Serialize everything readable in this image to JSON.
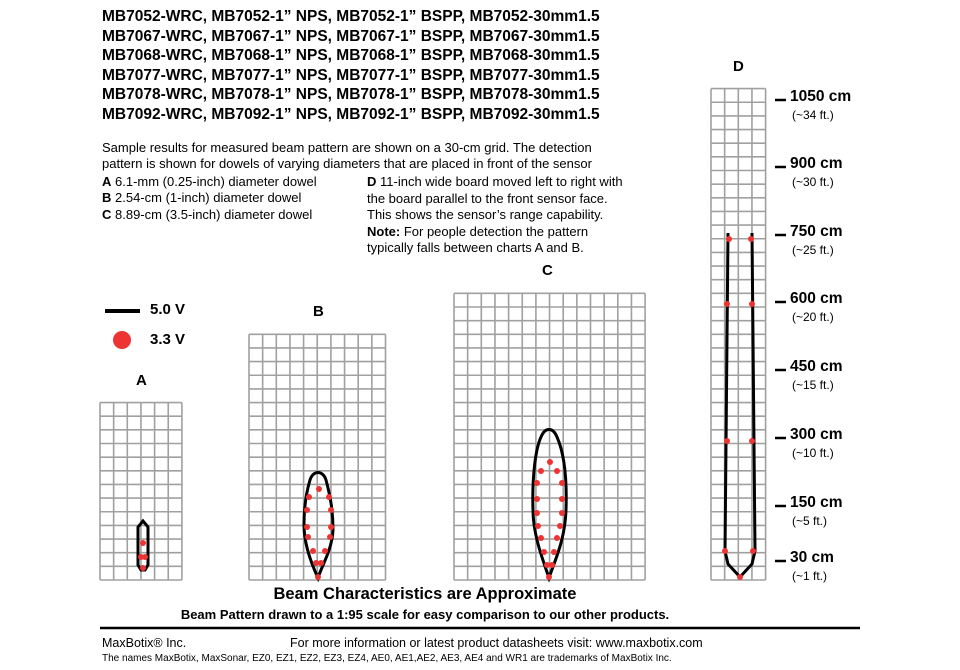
{
  "header": {
    "models": [
      "MB7052-WRC, MB7052-1” NPS, MB7052-1” BSPP, MB7052-30mm1.5",
      "MB7067-WRC, MB7067-1” NPS, MB7067-1” BSPP, MB7067-30mm1.5",
      "MB7068-WRC, MB7068-1” NPS, MB7068-1” BSPP, MB7068-30mm1.5",
      "MB7077-WRC, MB7077-1” NPS, MB7077-1” BSPP, MB7077-30mm1.5",
      "MB7078-WRC, MB7078-1” NPS, MB7078-1” BSPP, MB7078-30mm1.5",
      "MB7092-WRC, MB7092-1” NPS, MB7092-1” BSPP, MB7092-30mm1.5"
    ]
  },
  "description": {
    "line1": "Sample results for measured beam pattern are shown on a 30-cm grid. The detection",
    "line2": "pattern is shown for dowels of varying diameters that are placed in front of the sensor",
    "items": [
      {
        "key": "A",
        "text": " 6.1-mm (0.25-inch) diameter dowel"
      },
      {
        "key": "B",
        "text": " 2.54-cm (1-inch) diameter dowel"
      },
      {
        "key": "C",
        "text": " 8.89-cm (3.5-inch) diameter dowel"
      }
    ],
    "d_key": "D",
    "d_lines": [
      " 11-inch wide board moved left to right with",
      "the board parallel to the front sensor face.",
      "This shows the sensor’s range capability."
    ],
    "note_key": "Note:",
    "note_lines": [
      " For people detection the pattern",
      "typically falls between charts A and B."
    ]
  },
  "legend": {
    "line_label": "5.0 V",
    "dot_label": "3.3 V",
    "line_color": "#000000",
    "dot_color": "#ee3333"
  },
  "charts": {
    "A": {
      "label": "A",
      "cols": 6,
      "rows": 13
    },
    "B": {
      "label": "B",
      "cols": 10,
      "rows": 18
    },
    "C": {
      "label": "C",
      "cols": 14,
      "rows": 21
    },
    "D": {
      "label": "D",
      "cols": 4,
      "rows": 36
    }
  },
  "scale": [
    {
      "cm": "1050 cm",
      "ft": "(~34 ft.)"
    },
    {
      "cm": "900 cm",
      "ft": "(~30 ft.)"
    },
    {
      "cm": "750 cm",
      "ft": "(~25 ft.)"
    },
    {
      "cm": "600 cm",
      "ft": "(~20 ft.)"
    },
    {
      "cm": "450 cm",
      "ft": "(~15 ft.)"
    },
    {
      "cm": "300 cm",
      "ft": "(~10 ft.)"
    },
    {
      "cm": "150 cm",
      "ft": "(~5 ft.)"
    },
    {
      "cm": "30 cm",
      "ft": "(~1 ft.)"
    }
  ],
  "footer": {
    "title": "Beam Characteristics are Approximate",
    "subtitle": "Beam Pattern drawn to a 1:95 scale for easy comparison to our other products.",
    "company": "MaxBotix® Inc.",
    "info": "For more information or latest product datasheets visit:  www.maxbotix.com",
    "trademark": "The names MaxBotix, MaxSonar, EZ0, EZ1, EZ2, EZ3, EZ4, AE0, AE1,AE2, AE3, AE4 and WR1 are trademarks of MaxBotix Inc."
  },
  "colors": {
    "grid": "#a0a0a0",
    "beam": "#000000",
    "dot": "#ee3333"
  }
}
